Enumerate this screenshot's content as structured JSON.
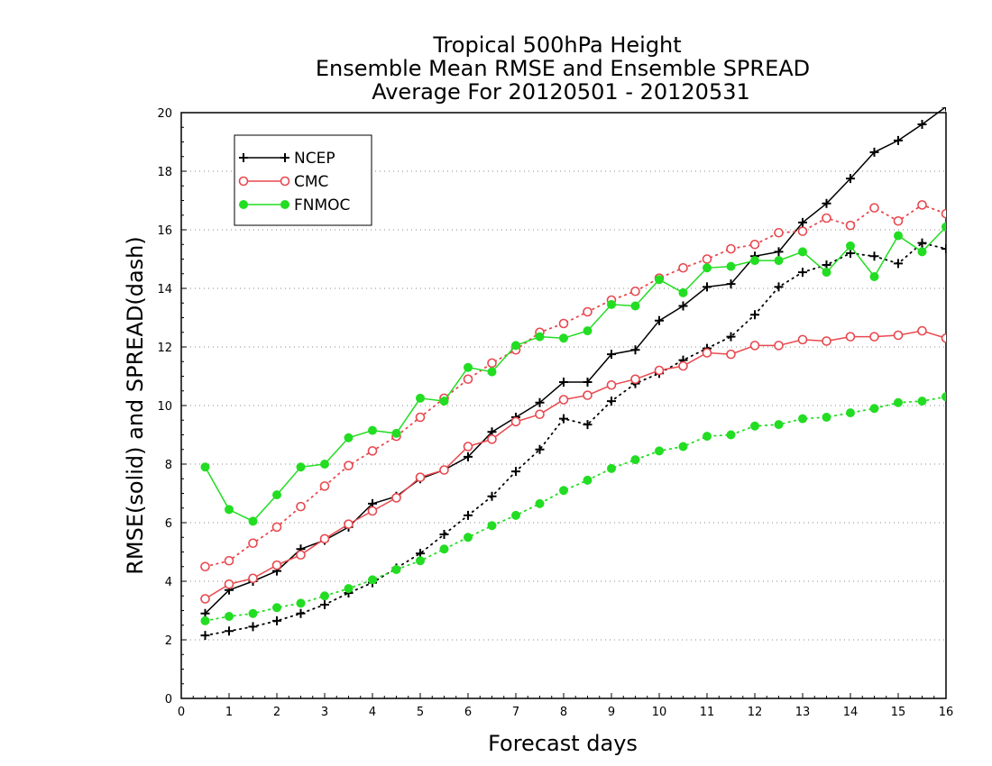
{
  "chart_data": {
    "type": "line",
    "title_lines": [
      "Tropical 500hPa Height",
      "Ensemble Mean RMSE and Ensemble SPREAD",
      "Average For 20120501 - 20120531"
    ],
    "xlabel": "Forecast days",
    "ylabel": "RMSE(solid) and SPREAD(dash)",
    "xlim": [
      0,
      16
    ],
    "ylim": [
      0,
      20
    ],
    "xticks": [
      "0",
      "1",
      "2",
      "3",
      "4",
      "5",
      "6",
      "7",
      "8",
      "9",
      "10",
      "11",
      "12",
      "13",
      "14",
      "15",
      "16"
    ],
    "yticks": [
      "0",
      "2",
      "4",
      "6",
      "8",
      "10",
      "12",
      "14",
      "16",
      "18",
      "20"
    ],
    "grid": "horizontal dotted",
    "legend_position": "top-left",
    "x": [
      0.5,
      1,
      1.5,
      2,
      2.5,
      3,
      3.5,
      4,
      4.5,
      5,
      5.5,
      6,
      6.5,
      7,
      7.5,
      8,
      8.5,
      9,
      9.5,
      10,
      10.5,
      11,
      11.5,
      12,
      12.5,
      13,
      13.5,
      14,
      14.5,
      15,
      15.5,
      16
    ],
    "series": [
      {
        "name": "NCEP",
        "color": "#000000",
        "marker": "plus",
        "rmse": [
          2.9,
          3.7,
          4.0,
          4.35,
          5.1,
          5.4,
          5.85,
          6.65,
          6.9,
          7.5,
          7.8,
          8.25,
          9.1,
          9.6,
          10.1,
          10.8,
          10.8,
          11.75,
          11.9,
          12.9,
          13.4,
          14.05,
          14.15,
          15.1,
          15.25,
          16.25,
          16.9,
          17.75,
          18.65,
          19.05,
          19.6,
          20.2
        ],
        "spread": [
          2.15,
          2.3,
          2.45,
          2.65,
          2.9,
          3.2,
          3.6,
          3.95,
          4.45,
          4.95,
          5.6,
          6.25,
          6.9,
          7.75,
          8.5,
          9.55,
          9.35,
          10.15,
          10.75,
          11.1,
          11.55,
          11.95,
          12.35,
          13.1,
          14.05,
          14.55,
          14.8,
          15.2,
          15.1,
          14.85,
          15.55,
          15.35
        ]
      },
      {
        "name": "CMC",
        "color": "#e8484e",
        "marker": "open-circle",
        "rmse": [
          3.4,
          3.9,
          4.1,
          4.55,
          4.9,
          5.45,
          5.95,
          6.4,
          6.85,
          7.55,
          7.8,
          8.6,
          8.85,
          9.45,
          9.7,
          10.2,
          10.35,
          10.7,
          10.9,
          11.2,
          11.35,
          11.8,
          11.75,
          12.05,
          12.05,
          12.25,
          12.2,
          12.35,
          12.35,
          12.4,
          12.55,
          12.3
        ],
        "spread": [
          4.5,
          4.7,
          5.3,
          5.85,
          6.55,
          7.25,
          7.95,
          8.45,
          8.95,
          9.6,
          10.25,
          10.9,
          11.45,
          11.9,
          12.5,
          12.8,
          13.2,
          13.6,
          13.9,
          14.35,
          14.7,
          15.0,
          15.35,
          15.5,
          15.9,
          15.95,
          16.4,
          16.15,
          16.75,
          16.3,
          16.85,
          16.55
        ]
      },
      {
        "name": "FNMOC",
        "color": "#22dd22",
        "marker": "filled-circle",
        "rmse": [
          7.9,
          6.45,
          6.05,
          6.95,
          7.9,
          8.0,
          8.9,
          9.15,
          9.05,
          10.25,
          10.15,
          11.3,
          11.15,
          12.05,
          12.35,
          12.3,
          12.55,
          13.45,
          13.4,
          14.3,
          13.85,
          14.7,
          14.75,
          14.95,
          14.95,
          15.25,
          14.55,
          15.45,
          14.4,
          15.8,
          15.25,
          16.1
        ],
        "spread": [
          2.65,
          2.8,
          2.9,
          3.1,
          3.25,
          3.5,
          3.75,
          4.05,
          4.4,
          4.7,
          5.1,
          5.5,
          5.9,
          6.25,
          6.65,
          7.1,
          7.45,
          7.85,
          8.15,
          8.45,
          8.6,
          8.95,
          9.0,
          9.3,
          9.35,
          9.55,
          9.6,
          9.75,
          9.9,
          10.1,
          10.15,
          10.3
        ]
      }
    ]
  }
}
